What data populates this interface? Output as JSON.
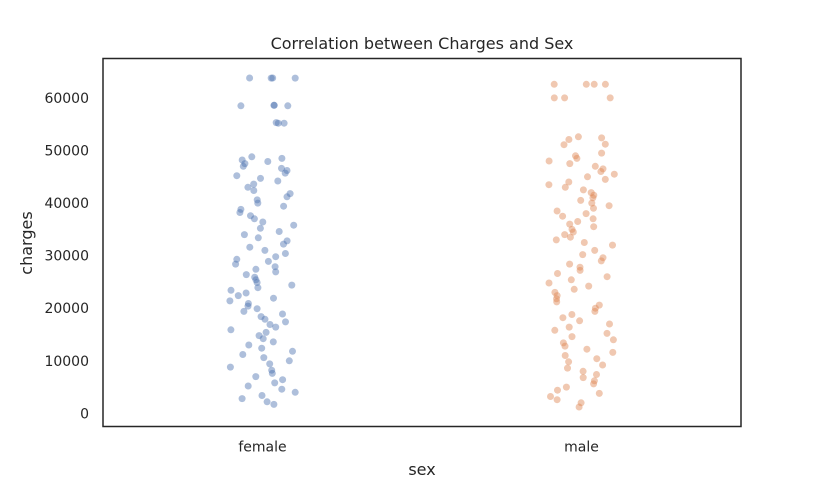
{
  "chart_data": {
    "type": "scatter",
    "subtype": "strip",
    "title": "Correlation between Charges and Sex",
    "xlabel": "sex",
    "ylabel": "charges",
    "categories": [
      "female",
      "male"
    ],
    "ylim": [
      -2500,
      67500
    ],
    "yticks": [
      0,
      10000,
      20000,
      30000,
      40000,
      50000,
      60000
    ],
    "ytick_labels": [
      "0",
      "10000",
      "20000",
      "30000",
      "40000",
      "50000",
      "60000"
    ],
    "grid": false,
    "legend": "none",
    "marker_alpha": 0.45,
    "colors": {
      "female": "#4c72b0",
      "male": "#dd8452",
      "frame": "#262626"
    },
    "series": [
      {
        "category": "female",
        "values": [
          63800,
          63800,
          63770,
          63770,
          58600,
          58600,
          58500,
          58500,
          55300,
          55200,
          55200,
          48800,
          48500,
          48200,
          47900,
          47500,
          47000,
          46600,
          46200,
          45700,
          45200,
          44700,
          44200,
          43600,
          43000,
          42400,
          41800,
          41200,
          40600,
          40000,
          39400,
          38800,
          38200,
          37600,
          37000,
          36400,
          35800,
          35200,
          34600,
          34000,
          33400,
          32800,
          32200,
          31600,
          31000,
          30400,
          29800,
          29300,
          28900,
          28400,
          27900,
          27400,
          26900,
          26400,
          25900,
          25400,
          24900,
          24400,
          23900,
          23400,
          22900,
          22400,
          21900,
          21400,
          20900,
          20400,
          19900,
          19400,
          18900,
          18400,
          17900,
          17400,
          16900,
          16400,
          15900,
          15400,
          14800,
          14200,
          13600,
          13000,
          12400,
          11800,
          11200,
          10600,
          10000,
          9400,
          8800,
          8200,
          7600,
          7000,
          6400,
          5800,
          5200,
          4600,
          4000,
          3400,
          2800,
          2200,
          1700
        ]
      },
      {
        "category": "male",
        "values": [
          62600,
          62600,
          62600,
          62600,
          60000,
          60000,
          60000,
          52600,
          52400,
          52100,
          51200,
          51100,
          49500,
          49000,
          48500,
          48000,
          47500,
          47000,
          46500,
          46000,
          45500,
          45000,
          44500,
          44000,
          43500,
          43000,
          42500,
          42000,
          41500,
          41000,
          40500,
          40000,
          39500,
          39000,
          38500,
          38000,
          37500,
          37000,
          36500,
          36000,
          35500,
          35000,
          34500,
          34000,
          33500,
          33000,
          32500,
          32000,
          31000,
          30200,
          29600,
          29000,
          28400,
          27800,
          27200,
          26600,
          26000,
          25400,
          24800,
          24200,
          23600,
          23000,
          22400,
          21800,
          21200,
          20600,
          20000,
          19400,
          18800,
          18200,
          17600,
          17000,
          16400,
          15800,
          15200,
          14600,
          14000,
          13400,
          12800,
          12200,
          11600,
          11000,
          10400,
          9800,
          9200,
          8600,
          8000,
          7400,
          6800,
          6200,
          5600,
          5000,
          4400,
          3800,
          3200,
          2600,
          2000,
          1200
        ]
      }
    ]
  }
}
